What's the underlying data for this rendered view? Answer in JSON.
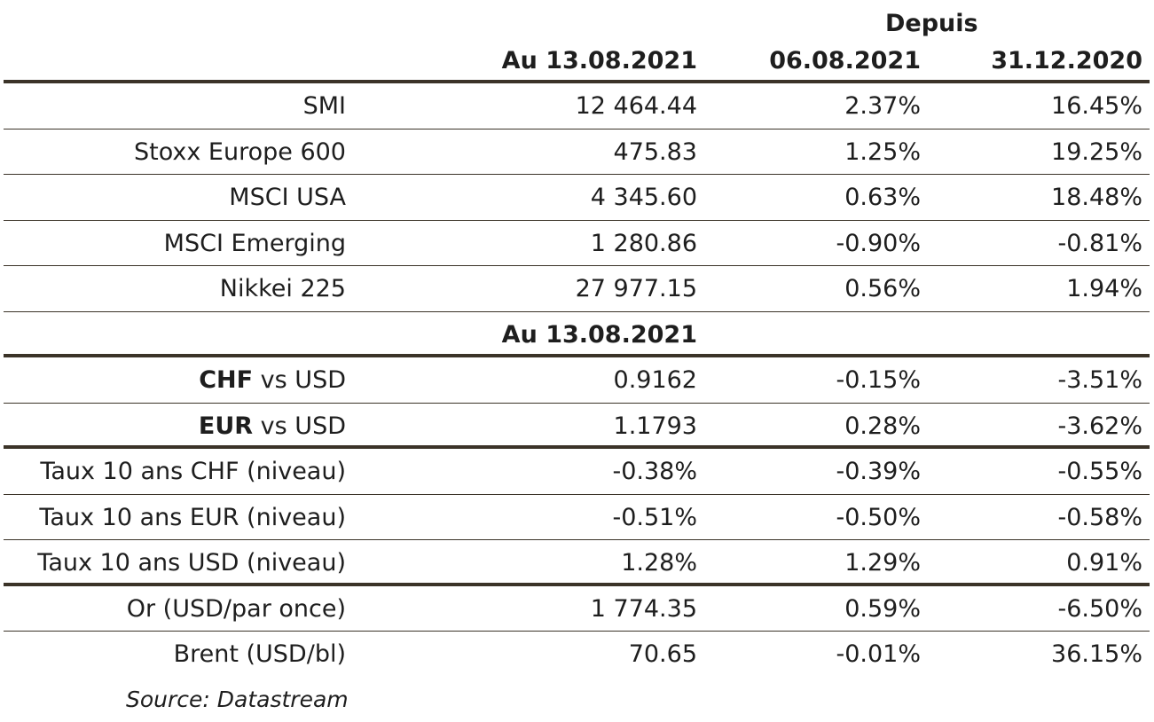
{
  "header": {
    "group_label": "Depuis",
    "col_current": "Au 13.08.2021",
    "col_week": "06.08.2021",
    "col_ytd": "31.12.2020"
  },
  "indices": [
    {
      "label": "SMI",
      "value": "12 464.44",
      "since_week": "2.37%",
      "since_ytd": "16.45%"
    },
    {
      "label": "Stoxx Europe 600",
      "value": "475.83",
      "since_week": "1.25%",
      "since_ytd": "19.25%"
    },
    {
      "label": "MSCI USA",
      "value": "4 345.60",
      "since_week": "0.63%",
      "since_ytd": "18.48%"
    },
    {
      "label": "MSCI Emerging",
      "value": "1 280.86",
      "since_week": "-0.90%",
      "since_ytd": "-0.81%"
    },
    {
      "label": "Nikkei 225",
      "value": "27 977.15",
      "since_week": "0.56%",
      "since_ytd": "1.94%"
    }
  ],
  "mid_header": "Au 13.08.2021",
  "fx": [
    {
      "label_bold": "CHF",
      "label_rest": " vs USD",
      "value": "0.9162",
      "since_week": "-0.15%",
      "since_ytd": "-3.51%"
    },
    {
      "label_bold": "EUR",
      "label_rest": " vs USD",
      "value": "1.1793",
      "since_week": "0.28%",
      "since_ytd": "-3.62%"
    }
  ],
  "rates": [
    {
      "label": "Taux 10 ans CHF (niveau)",
      "value": "-0.38%",
      "since_week": "-0.39%",
      "since_ytd": "-0.55%"
    },
    {
      "label": "Taux 10 ans EUR (niveau)",
      "value": "-0.51%",
      "since_week": "-0.50%",
      "since_ytd": "-0.58%"
    },
    {
      "label": "Taux 10 ans USD (niveau)",
      "value": "1.28%",
      "since_week": "1.29%",
      "since_ytd": "0.91%"
    }
  ],
  "commodities": [
    {
      "label": "Or (USD/par once)",
      "value": "1 774.35",
      "since_week": "0.59%",
      "since_ytd": "-6.50%"
    },
    {
      "label": "Brent (USD/bl)",
      "value": "70.65",
      "since_week": "-0.01%",
      "since_ytd": "36.15%"
    }
  ],
  "source": "Source: Datastream",
  "colors": {
    "text": "#1e1e1e",
    "rule": "#3b3328"
  }
}
